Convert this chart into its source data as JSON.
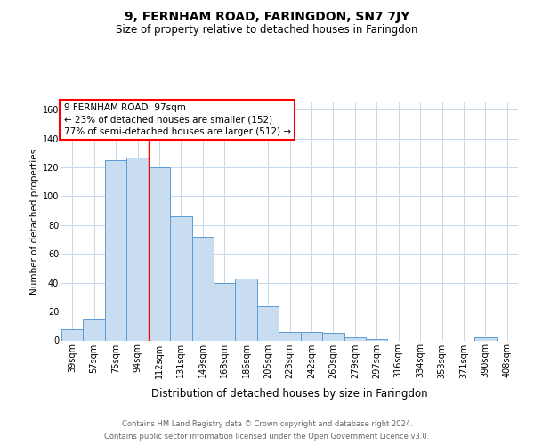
{
  "title": "9, FERNHAM ROAD, FARINGDON, SN7 7JY",
  "subtitle": "Size of property relative to detached houses in Faringdon",
  "xlabel": "Distribution of detached houses by size in Faringdon",
  "ylabel": "Number of detached properties",
  "categories": [
    "39sqm",
    "57sqm",
    "75sqm",
    "94sqm",
    "112sqm",
    "131sqm",
    "149sqm",
    "168sqm",
    "186sqm",
    "205sqm",
    "223sqm",
    "242sqm",
    "260sqm",
    "279sqm",
    "297sqm",
    "316sqm",
    "334sqm",
    "353sqm",
    "371sqm",
    "390sqm",
    "408sqm"
  ],
  "values": [
    8,
    15,
    125,
    127,
    120,
    86,
    72,
    40,
    43,
    24,
    6,
    6,
    5,
    2,
    1,
    0,
    0,
    0,
    0,
    2,
    0
  ],
  "bar_color": "#c9ddf0",
  "bar_edge_color": "#5b9bd5",
  "red_line_index": 3.5,
  "annotation_line1": "9 FERNHAM ROAD: 97sqm",
  "annotation_line2": "← 23% of detached houses are smaller (152)",
  "annotation_line3": "77% of semi-detached houses are larger (512) →",
  "ylim": [
    0,
    165
  ],
  "yticks": [
    0,
    20,
    40,
    60,
    80,
    100,
    120,
    140,
    160
  ],
  "footer_line1": "Contains HM Land Registry data © Crown copyright and database right 2024.",
  "footer_line2": "Contains public sector information licensed under the Open Government Licence v3.0.",
  "background_color": "#ffffff",
  "grid_color": "#c8d8ec",
  "title_fontsize": 10,
  "subtitle_fontsize": 8.5,
  "ylabel_fontsize": 7.5,
  "xlabel_fontsize": 8.5,
  "tick_fontsize": 7,
  "annotation_fontsize": 7.5,
  "footer_fontsize": 6
}
